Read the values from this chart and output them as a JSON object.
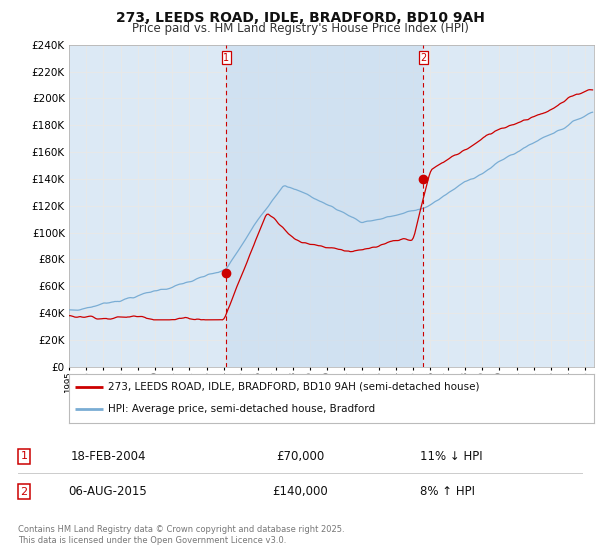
{
  "title": "273, LEEDS ROAD, IDLE, BRADFORD, BD10 9AH",
  "subtitle": "Price paid vs. HM Land Registry's House Price Index (HPI)",
  "title_fontsize": 10,
  "subtitle_fontsize": 8.5,
  "background_color": "#ffffff",
  "plot_bg_color": "#dce9f5",
  "shade_color": "#c8dcef",
  "grid_color": "#e8e8e8",
  "red_color": "#cc0000",
  "blue_color": "#7aadd4",
  "sale1_date_x": 2004.13,
  "sale1_price": 70000,
  "sale2_date_x": 2015.59,
  "sale2_price": 140000,
  "xmin": 1995,
  "xmax": 2025.5,
  "ymin": 0,
  "ymax": 240000,
  "ytick_step": 20000,
  "legend_line1": "273, LEEDS ROAD, IDLE, BRADFORD, BD10 9AH (semi-detached house)",
  "legend_line2": "HPI: Average price, semi-detached house, Bradford",
  "table_row1_num": "1",
  "table_row1_date": "18-FEB-2004",
  "table_row1_price": "£70,000",
  "table_row1_hpi": "11% ↓ HPI",
  "table_row2_num": "2",
  "table_row2_date": "06-AUG-2015",
  "table_row2_price": "£140,000",
  "table_row2_hpi": "8% ↑ HPI",
  "footer": "Contains HM Land Registry data © Crown copyright and database right 2025.\nThis data is licensed under the Open Government Licence v3.0."
}
